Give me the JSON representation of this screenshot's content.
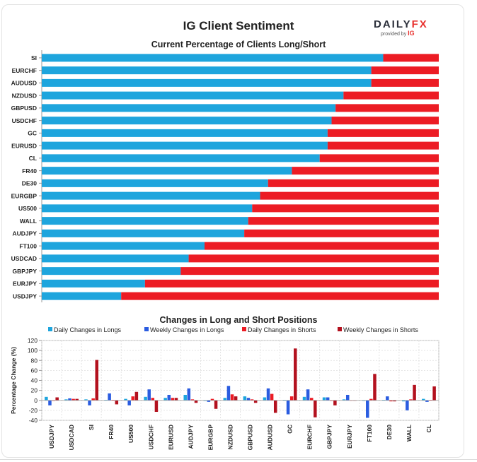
{
  "title": "IG Client Sentiment",
  "logo": {
    "brand_main": "DAILY",
    "brand_accent": "FX",
    "tagline": "provided by",
    "tagline_brand": "IG"
  },
  "colors": {
    "long": "#1ea5dd",
    "weekly_long": "#2a5ce0",
    "short": "#ec1c24",
    "weekly_short": "#b3111e"
  },
  "chart_data": [
    {
      "type": "bar",
      "orientation": "horizontal",
      "stacked": true,
      "title": "Current Percentage of Clients Long/Short",
      "categories": [
        "SI",
        "EURCHF",
        "AUDUSD",
        "NZDUSD",
        "GBPUSD",
        "USDCHF",
        "GC",
        "EURUSD",
        "CL",
        "FR40",
        "DE30",
        "EURGBP",
        "US500",
        "WALL",
        "AUDJPY",
        "FT100",
        "USDCAD",
        "GBPJPY",
        "EURJPY",
        "USDJPY"
      ],
      "series": [
        {
          "values": [
            86,
            83,
            83,
            76,
            74,
            73,
            72,
            72,
            70,
            63,
            57,
            55,
            53,
            52,
            51,
            41,
            37,
            35,
            26,
            20
          ]
        },
        {
          "values": [
            14,
            17,
            17,
            24,
            26,
            27,
            28,
            28,
            30,
            37,
            43,
            45,
            47,
            48,
            49,
            59,
            63,
            65,
            74,
            80
          ]
        }
      ],
      "xlim": [
        0,
        100
      ]
    },
    {
      "type": "bar",
      "title": "Changes in Long and Short Positions",
      "ylabel": "Percentage Change (%)",
      "ylim": [
        -40,
        120
      ],
      "yticks": [
        -40,
        -20,
        0,
        20,
        40,
        60,
        80,
        100,
        120
      ],
      "categories": [
        "USDJPY",
        "USDCAD",
        "SI",
        "FR40",
        "US500",
        "USDCHF",
        "EURUSD",
        "AUDJPY",
        "EURGBP",
        "NZDUSD",
        "GBPUSD",
        "AUDUSD",
        "GC",
        "EURCHF",
        "GBPJPY",
        "EURJPY",
        "FT100",
        "DE30",
        "WALL",
        "CL"
      ],
      "series": [
        {
          "name": "Daily Changes in Longs",
          "values": [
            7,
            2,
            2,
            1,
            3,
            7,
            5,
            11,
            -1,
            5,
            8,
            6,
            1,
            7,
            6,
            2,
            -1,
            1,
            -2,
            3
          ]
        },
        {
          "name": "Weekly Changes in Longs",
          "values": [
            -10,
            4,
            -10,
            14,
            -10,
            22,
            11,
            24,
            -3,
            29,
            5,
            24,
            -28,
            22,
            6,
            11,
            -35,
            8,
            -20,
            -3
          ]
        },
        {
          "name": "Daily Changes in Shorts",
          "values": [
            -1,
            3,
            4,
            1,
            8,
            5,
            5,
            2,
            3,
            12,
            2,
            13,
            8,
            5,
            -1,
            0,
            3,
            -2,
            2,
            1
          ]
        },
        {
          "name": "Weekly Changes in Shorts",
          "values": [
            6,
            3,
            81,
            -8,
            17,
            -23,
            5,
            -5,
            -17,
            8,
            -5,
            -25,
            104,
            -34,
            -10,
            0,
            53,
            -2,
            31,
            28
          ]
        }
      ]
    }
  ]
}
